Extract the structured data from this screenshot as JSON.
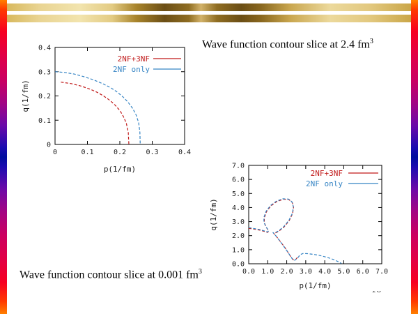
{
  "slide": {
    "caption_top": {
      "text": "Wave function contour slice at 2.4 fm",
      "sup": "3"
    },
    "caption_bottom": {
      "text": "Wave function contour slice at 0.001 fm",
      "sup": "3"
    },
    "page_number": "16"
  },
  "colors": {
    "series_red": "#c01818",
    "series_blue": "#3584c4",
    "gold_light": "#f2e4ae",
    "gold_dark": "#6b4e15",
    "side_orange": "#ff8000",
    "side_red": "#f70021",
    "side_purple": "#6a0aa8",
    "side_navy": "#000d9d"
  },
  "chart_data": [
    {
      "type": "line",
      "title": "",
      "xlabel": "p(1/fm)",
      "ylabel": "q(1/fm)",
      "xlim": [
        0,
        0.4
      ],
      "ylim": [
        0,
        0.4
      ],
      "x_ticks": [
        "0",
        "0.1",
        "0.2",
        "0.3",
        "0.4"
      ],
      "y_ticks": [
        "0",
        "0.1",
        "0.2",
        "0.3",
        "0.4"
      ],
      "grid": false,
      "legend_position": "top-right-inside",
      "series": [
        {
          "name": "2NF+3NF",
          "color": "#c01818",
          "points": [
            [
              0.018,
              0.257
            ],
            [
              0.05,
              0.251
            ],
            [
              0.08,
              0.241
            ],
            [
              0.11,
              0.227
            ],
            [
              0.13,
              0.215
            ],
            [
              0.15,
              0.2
            ],
            [
              0.17,
              0.181
            ],
            [
              0.185,
              0.163
            ],
            [
              0.2,
              0.14
            ],
            [
              0.21,
              0.118
            ],
            [
              0.22,
              0.088
            ],
            [
              0.226,
              0.05
            ],
            [
              0.228,
              0.0
            ]
          ]
        },
        {
          "name": "2NF only",
          "color": "#3584c4",
          "points": [
            [
              0.0,
              0.3
            ],
            [
              0.03,
              0.297
            ],
            [
              0.06,
              0.29
            ],
            [
              0.09,
              0.279
            ],
            [
              0.12,
              0.266
            ],
            [
              0.15,
              0.249
            ],
            [
              0.17,
              0.235
            ],
            [
              0.19,
              0.218
            ],
            [
              0.21,
              0.196
            ],
            [
              0.225,
              0.175
            ],
            [
              0.24,
              0.148
            ],
            [
              0.25,
              0.122
            ],
            [
              0.258,
              0.09
            ],
            [
              0.262,
              0.05
            ],
            [
              0.263,
              0.0
            ]
          ]
        }
      ]
    },
    {
      "type": "line",
      "title": "",
      "xlabel": "p(1/fm)",
      "ylabel": "q(1/fm)",
      "xlim": [
        0,
        7
      ],
      "ylim": [
        0,
        7
      ],
      "x_ticks": [
        "0.0",
        "1.0",
        "2.0",
        "3.0",
        "4.0",
        "5.0",
        "6.0",
        "7.0"
      ],
      "y_ticks": [
        "0.0",
        "1.0",
        "2.0",
        "3.0",
        "4.0",
        "5.0",
        "6.0",
        "7.0"
      ],
      "grid": false,
      "legend_position": "top-right-inside",
      "series": [
        {
          "name": "2NF+3NF",
          "color": "#c01818",
          "points": [
            [
              0,
              2.52
            ],
            [
              0.3,
              2.46
            ],
            [
              0.6,
              2.39
            ],
            [
              0.85,
              2.29
            ],
            [
              1.0,
              2.23
            ],
            [
              1.05,
              2.35
            ],
            [
              0.93,
              2.57
            ],
            [
              0.82,
              2.92
            ],
            [
              0.82,
              3.27
            ],
            [
              0.94,
              3.72
            ],
            [
              1.17,
              4.12
            ],
            [
              1.47,
              4.42
            ],
            [
              1.82,
              4.59
            ],
            [
              2.11,
              4.57
            ],
            [
              2.29,
              4.37
            ],
            [
              2.36,
              4.02
            ],
            [
              2.31,
              3.57
            ],
            [
              2.13,
              3.07
            ],
            [
              1.86,
              2.62
            ],
            [
              1.56,
              2.29
            ],
            [
              1.33,
              2.15
            ],
            [
              1.3,
              2.19
            ],
            [
              1.48,
              1.9
            ],
            [
              1.7,
              1.52
            ],
            [
              1.92,
              1.12
            ],
            [
              2.08,
              0.78
            ],
            [
              2.22,
              0.48
            ],
            [
              2.35,
              0.28
            ],
            [
              2.48,
              0.32
            ],
            [
              2.62,
              0.55
            ]
          ]
        },
        {
          "name": "2NF only",
          "color": "#3584c4",
          "points": [
            [
              0,
              2.57
            ],
            [
              0.3,
              2.5
            ],
            [
              0.6,
              2.43
            ],
            [
              0.85,
              2.33
            ],
            [
              1.0,
              2.26
            ],
            [
              1.05,
              2.38
            ],
            [
              0.92,
              2.6
            ],
            [
              0.8,
              2.95
            ],
            [
              0.8,
              3.3
            ],
            [
              0.92,
              3.75
            ],
            [
              1.15,
              4.15
            ],
            [
              1.45,
              4.45
            ],
            [
              1.8,
              4.62
            ],
            [
              2.1,
              4.6
            ],
            [
              2.28,
              4.4
            ],
            [
              2.35,
              4.05
            ],
            [
              2.3,
              3.6
            ],
            [
              2.12,
              3.1
            ],
            [
              1.85,
              2.65
            ],
            [
              1.55,
              2.32
            ],
            [
              1.32,
              2.18
            ],
            [
              1.28,
              2.22
            ],
            [
              1.45,
              1.95
            ],
            [
              1.65,
              1.6
            ],
            [
              1.85,
              1.22
            ],
            [
              2.02,
              0.9
            ],
            [
              2.18,
              0.58
            ],
            [
              2.3,
              0.33
            ],
            [
              2.42,
              0.25
            ],
            [
              2.58,
              0.42
            ],
            [
              2.72,
              0.65
            ],
            [
              2.85,
              0.73
            ],
            [
              3.1,
              0.72
            ],
            [
              3.4,
              0.67
            ],
            [
              3.7,
              0.6
            ],
            [
              4.0,
              0.5
            ],
            [
              4.3,
              0.38
            ],
            [
              4.55,
              0.25
            ],
            [
              4.75,
              0.12
            ],
            [
              4.88,
              0.02
            ]
          ]
        }
      ]
    }
  ]
}
